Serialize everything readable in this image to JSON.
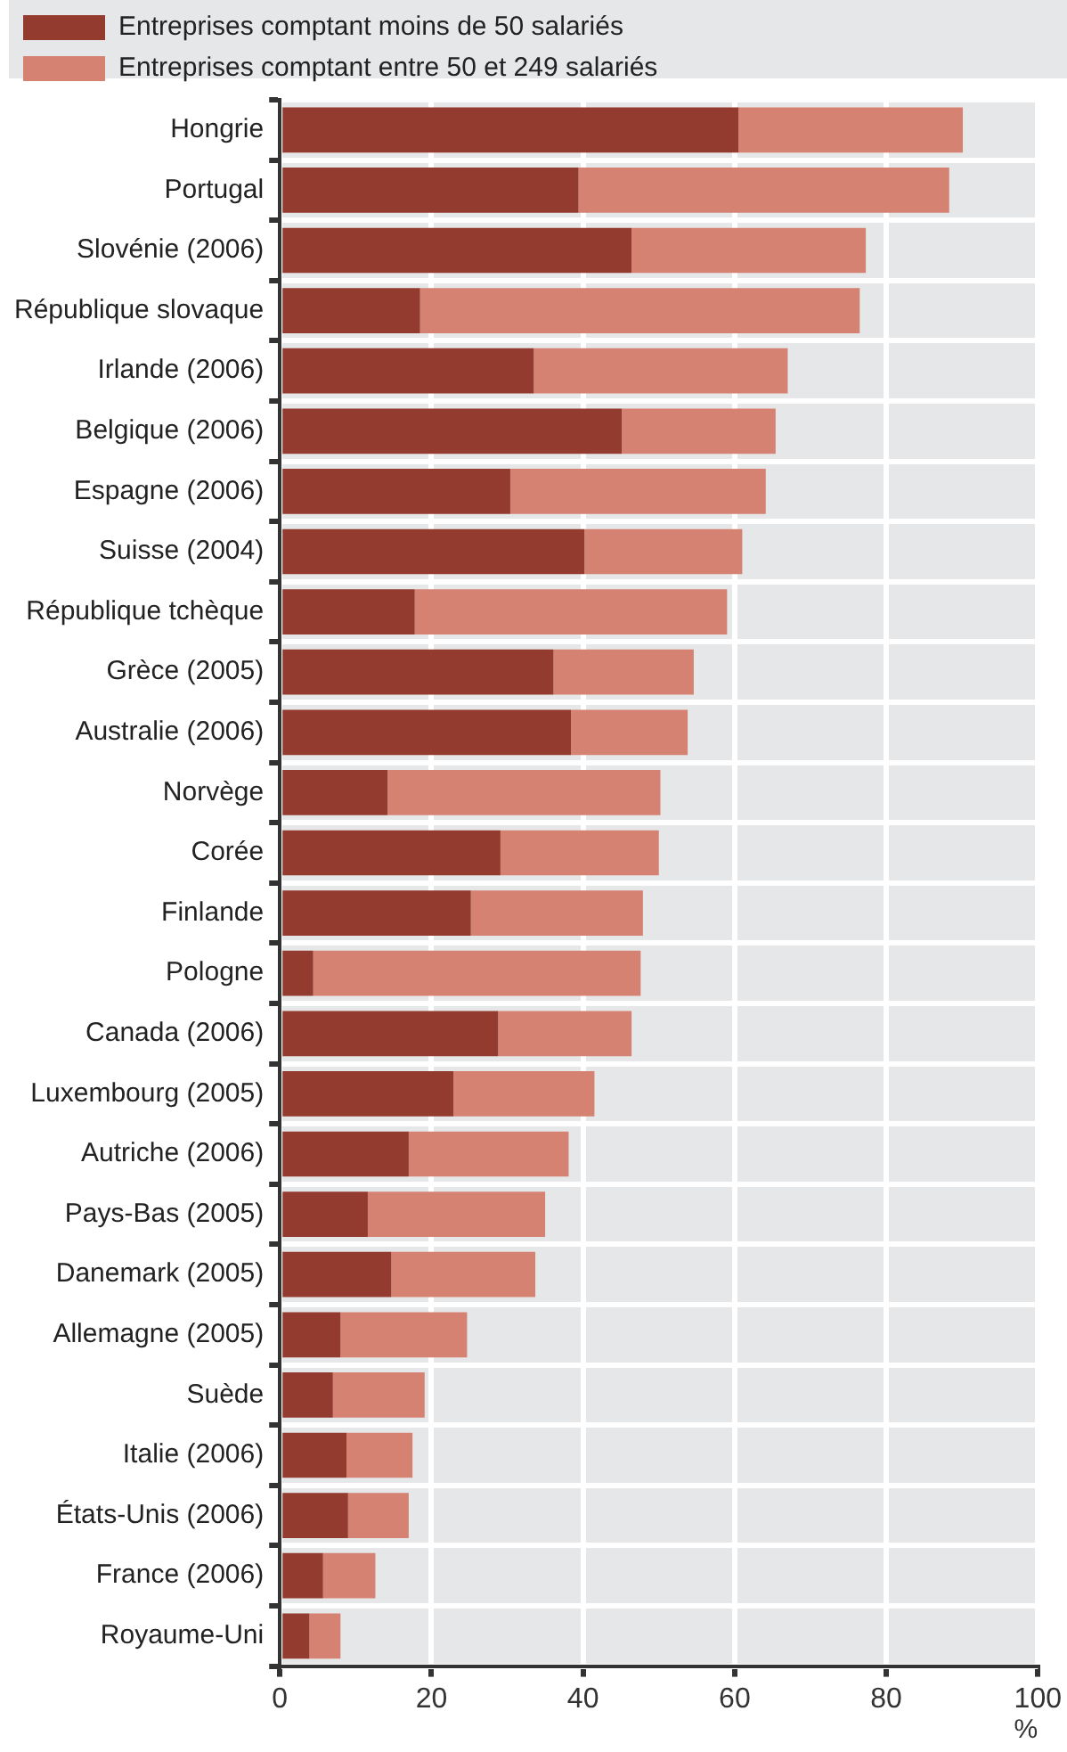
{
  "chart_data": {
    "type": "bar",
    "orientation": "horizontal",
    "stacked": true,
    "xlabel": "%",
    "legend": "top",
    "grid": true,
    "categories": [
      "Hongrie",
      "Portugal",
      "Slovénie (2006)",
      "République slovaque",
      "Irlande (2006)",
      "Belgique (2006)",
      "Espagne (2006)",
      "Suisse (2004)",
      "République tchèque",
      "Grèce (2005)",
      "Australie (2006)",
      "Norvège",
      "Corée",
      "Finlande",
      "Pologne",
      "Canada (2006)",
      "Luxembourg (2005)",
      "Autriche (2006)",
      "Pays-Bas (2005)",
      "Danemark (2005)",
      "Allemagne (2005)",
      "Suède",
      "Italie (2006)",
      "États-Unis (2006)",
      "France (2006)",
      "Royaume-Uni"
    ],
    "series": [
      {
        "name": "Entreprises comptant moins de 50 salariés",
        "color": "#933b2e",
        "values": [
          60.5,
          39.4,
          46.4,
          18.5,
          33.5,
          45.1,
          30.4,
          40.2,
          17.8,
          36.1,
          38.4,
          14.2,
          29.1,
          25.2,
          4.4,
          28.8,
          22.9,
          17.0,
          11.6,
          14.7,
          8.0,
          7.0,
          8.8,
          9.0,
          5.7,
          3.9
        ]
      },
      {
        "name": "Entreprises comptant entre 50 et 249 salariés",
        "color": "#d58272",
        "values": [
          29.6,
          48.9,
          30.9,
          58.0,
          33.5,
          20.3,
          33.7,
          20.8,
          41.2,
          18.5,
          15.4,
          36.0,
          20.9,
          22.7,
          43.2,
          17.6,
          18.6,
          21.1,
          23.4,
          19.0,
          16.7,
          12.1,
          8.7,
          8.0,
          6.9,
          4.1
        ]
      }
    ],
    "xlim": [
      0,
      100
    ],
    "xticks": [
      0,
      20,
      40,
      60,
      80,
      100
    ]
  }
}
